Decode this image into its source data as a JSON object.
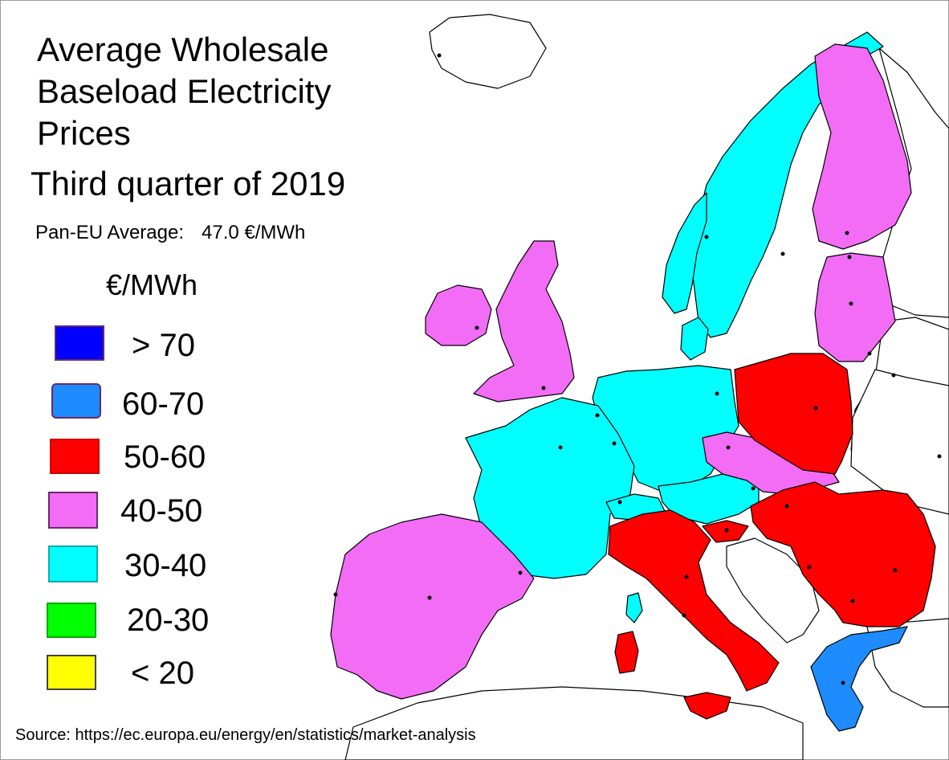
{
  "title_lines": [
    "Average Wholesale",
    "Baseload Electricity",
    "Prices"
  ],
  "subtitle": "Third quarter of 2019",
  "pan_eu": {
    "label": "Pan-EU Average:",
    "value": "47.0 €/MWh"
  },
  "legend": {
    "unit": "€/MWh",
    "items": [
      {
        "label": "> 70",
        "color": "#0000ff"
      },
      {
        "label": "60-70",
        "color": "#1e8cff"
      },
      {
        "label": "50-60",
        "color": "#ff0000"
      },
      {
        "label": "40-50",
        "color": "#f36cf6"
      },
      {
        "label": "30-40",
        "color": "#00ffff"
      },
      {
        "label": "20-30",
        "color": "#00ff00"
      },
      {
        "label": "< 20",
        "color": "#ffff00"
      }
    ]
  },
  "source": "Source: https://ec.europa.eu/energy/en/statistics/market-analysis",
  "price_bands_by_country": {
    "40-50": [
      "Ireland",
      "United Kingdom",
      "Spain",
      "Portugal",
      "Finland",
      "Estonia",
      "Latvia",
      "Lithuania",
      "Czech Republic",
      "Slovakia"
    ],
    "30-40": [
      "Norway",
      "Sweden",
      "Denmark",
      "Netherlands",
      "Belgium",
      "France",
      "Germany",
      "Austria",
      "Switzerland"
    ],
    "50-60": [
      "Poland",
      "Italy",
      "Slovenia",
      "Hungary",
      "Croatia",
      "Romania",
      "Bulgaria"
    ],
    "60-70": [
      "Greece"
    ]
  }
}
